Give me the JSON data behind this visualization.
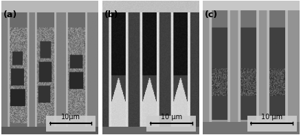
{
  "panels": [
    "(a)",
    "(b)",
    "(c)"
  ],
  "scale_labels": [
    "10μm",
    "10 μm",
    "10 μm"
  ],
  "label_fontsize": 9,
  "scale_fontsize": 7
}
